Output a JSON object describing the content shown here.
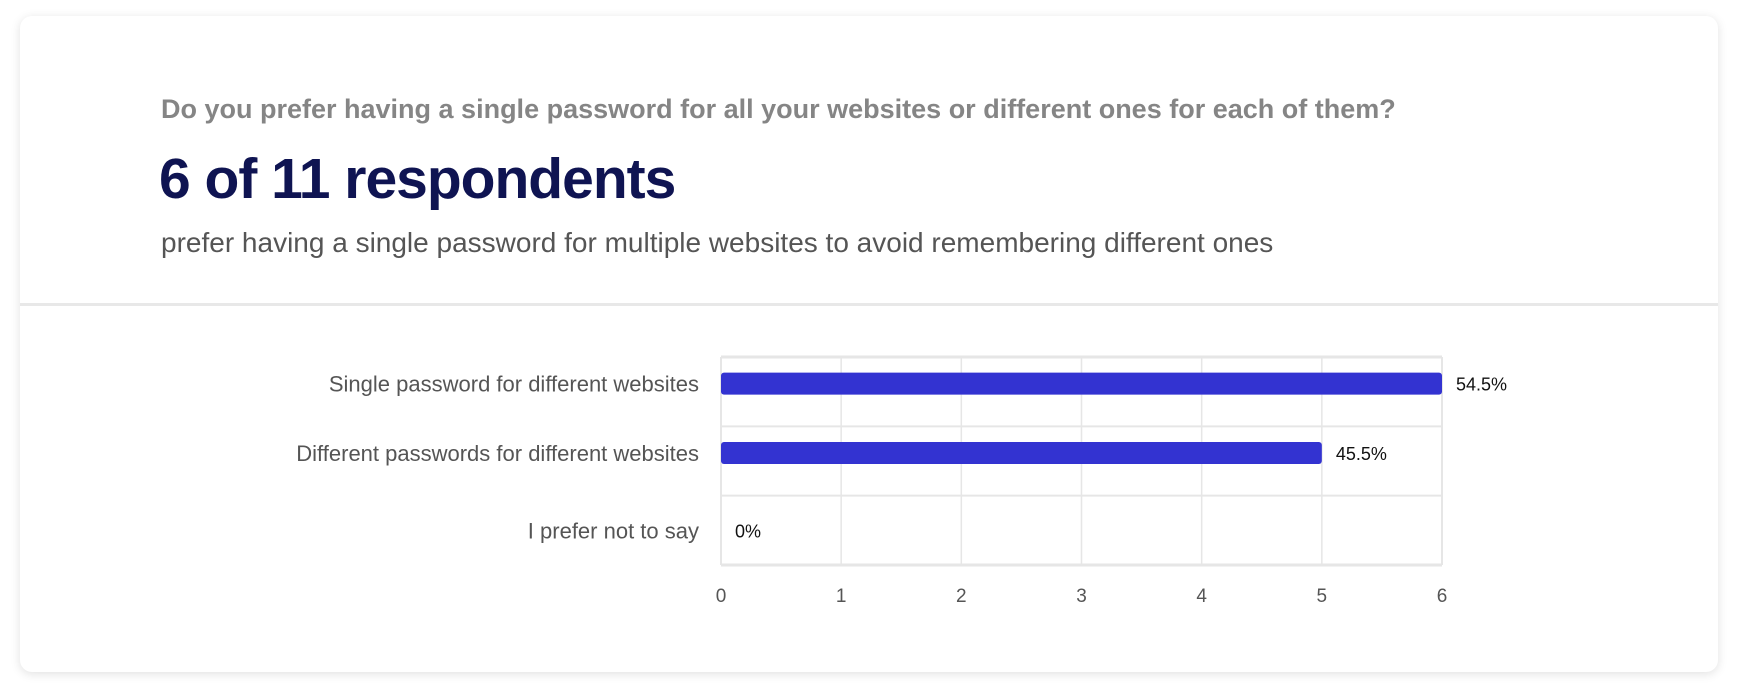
{
  "header": {
    "question": "Do you prefer having a single password for all your websites or different ones for each of them?",
    "headline": "6 of 11 respondents",
    "subtitle": "prefer having a single password for multiple websites to avoid remembering different ones"
  },
  "chart_data": {
    "type": "bar",
    "orientation": "horizontal",
    "categories": [
      "Single password for different websites",
      "Different passwords for different websites",
      "I prefer not to say"
    ],
    "values": [
      6,
      5,
      0
    ],
    "data_labels": [
      "54.5%",
      "45.5%",
      "0%"
    ],
    "xticks": [
      "0",
      "1",
      "2",
      "3",
      "4",
      "5",
      "6"
    ],
    "xlim": [
      0,
      6
    ],
    "grid": true,
    "bar_color": "#3333d1"
  }
}
